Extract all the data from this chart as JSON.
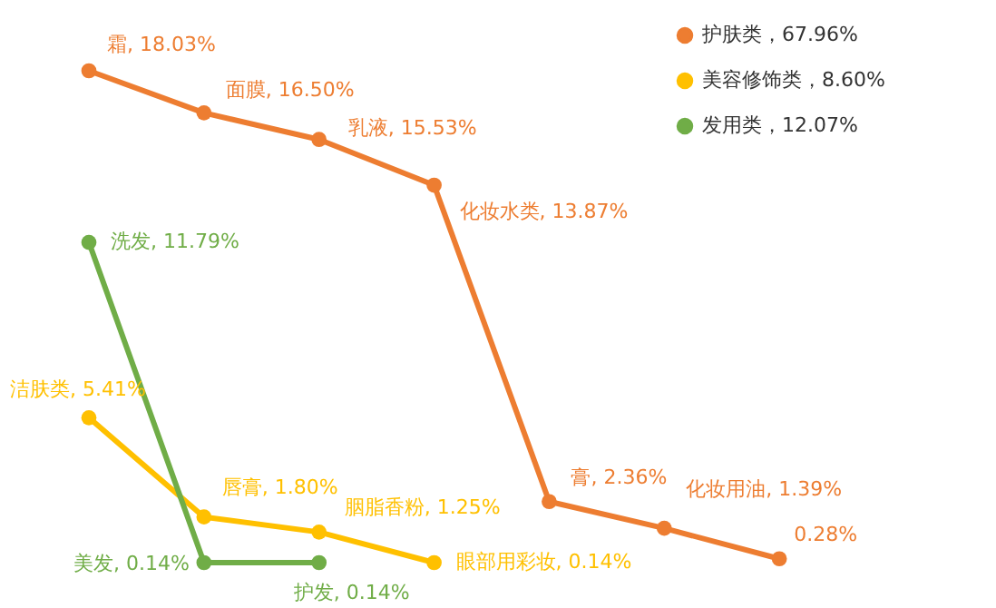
{
  "chart_data": {
    "type": "line",
    "categories": [
      null,
      null,
      null,
      null,
      null,
      null,
      null,
      null
    ],
    "series": [
      {
        "name": "护肤类，67.96%",
        "color": "#ed7d31",
        "values": [
          18.03,
          16.5,
          15.53,
          13.87,
          2.36,
          1.39,
          0.28,
          null
        ],
        "value_labels": [
          "霜, 18.03%",
          "面膜, 16.50%",
          "乳液, 15.53%",
          "化妆水类, 13.87%",
          "膏, 2.36%",
          "化妆用油, 1.39%",
          "0.28%",
          null
        ]
      },
      {
        "name": "美容修饰类，8.60%",
        "color": "#ffc000",
        "values": [
          5.41,
          1.8,
          1.25,
          0.14,
          null,
          null,
          null,
          null
        ],
        "value_labels": [
          "洁肤类, 5.41%",
          "唇膏, 1.80%",
          "胭脂香粉, 1.25%",
          "眼部用彩妆, 0.14%",
          null,
          null,
          null,
          null
        ]
      },
      {
        "name": "发用类，12.07%",
        "color": "#70ad47",
        "values": [
          11.79,
          0.14,
          0.14,
          null,
          null,
          null,
          null,
          null
        ],
        "value_labels": [
          "洗发, 11.79%",
          "美发, 0.14%",
          "护发, 0.14%",
          null,
          null,
          null,
          null,
          null
        ]
      }
    ],
    "marker": "circle",
    "legend": "top right",
    "tick_labels": false,
    "grid": false
  }
}
